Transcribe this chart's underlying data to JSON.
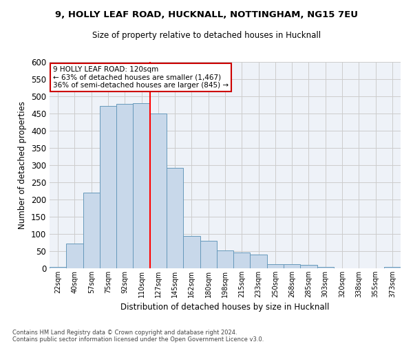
{
  "title_line1": "9, HOLLY LEAF ROAD, HUCKNALL, NOTTINGHAM, NG15 7EU",
  "title_line2": "Size of property relative to detached houses in Hucknall",
  "xlabel": "Distribution of detached houses by size in Hucknall",
  "ylabel": "Number of detached properties",
  "categories": [
    "22sqm",
    "40sqm",
    "57sqm",
    "75sqm",
    "92sqm",
    "110sqm",
    "127sqm",
    "145sqm",
    "162sqm",
    "180sqm",
    "198sqm",
    "215sqm",
    "233sqm",
    "250sqm",
    "268sqm",
    "285sqm",
    "303sqm",
    "320sqm",
    "338sqm",
    "355sqm",
    "373sqm"
  ],
  "values": [
    5,
    73,
    220,
    473,
    478,
    480,
    450,
    293,
    95,
    81,
    53,
    46,
    40,
    12,
    12,
    10,
    5,
    0,
    0,
    0,
    5
  ],
  "bar_color": "#c8d8ea",
  "bar_edge_color": "#6699bb",
  "grid_color": "#cccccc",
  "background_color": "#eef2f8",
  "red_line_x": 5.5,
  "annotation_text": "9 HOLLY LEAF ROAD: 120sqm\n← 63% of detached houses are smaller (1,467)\n36% of semi-detached houses are larger (845) →",
  "annotation_box_color": "#ffffff",
  "annotation_border_color": "#cc0000",
  "ylim": [
    0,
    600
  ],
  "yticks": [
    0,
    50,
    100,
    150,
    200,
    250,
    300,
    350,
    400,
    450,
    500,
    550,
    600
  ],
  "footer_line1": "Contains HM Land Registry data © Crown copyright and database right 2024.",
  "footer_line2": "Contains public sector information licensed under the Open Government Licence v3.0."
}
